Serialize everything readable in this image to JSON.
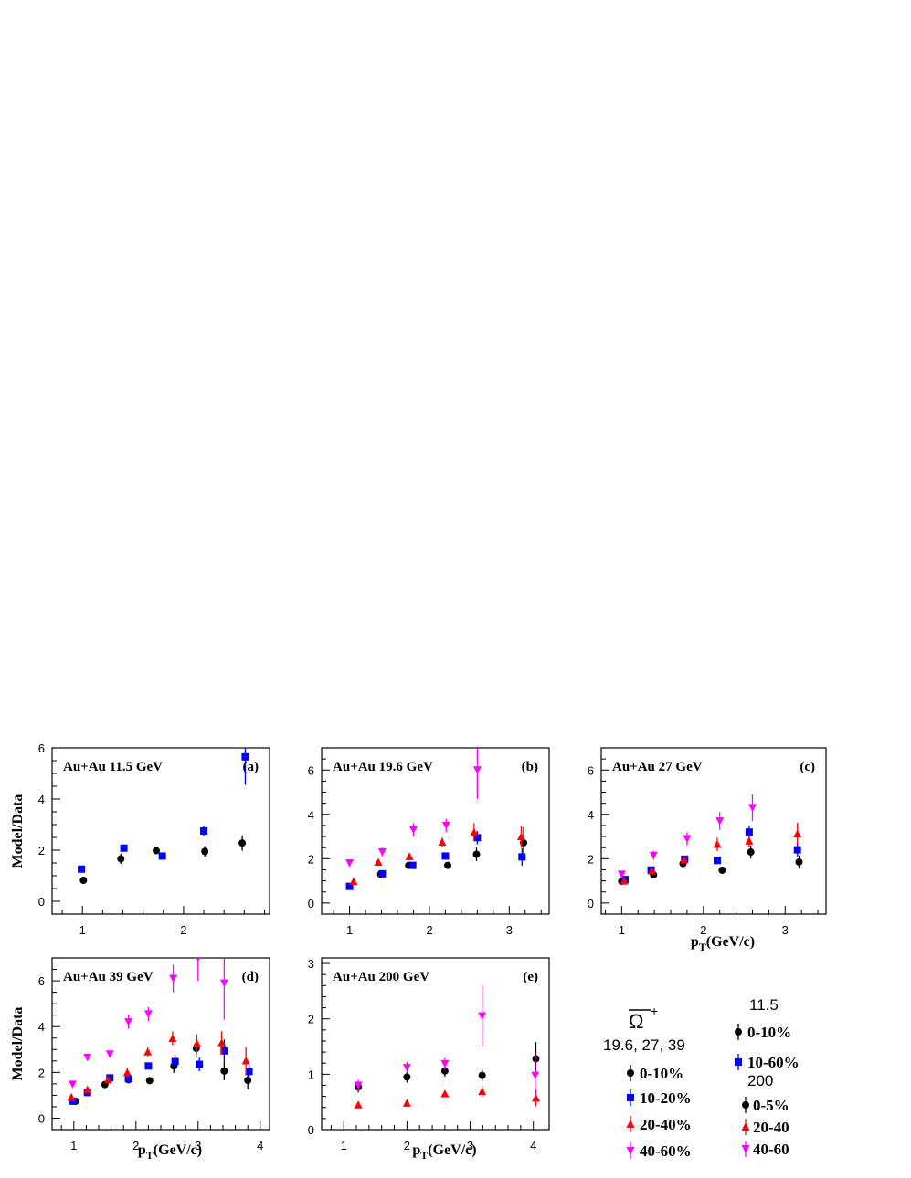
{
  "figure": {
    "legend_particle": "Ω",
    "legend_particle_sup": "+",
    "legend_group_left": "19.6, 27, 39",
    "legend_left": [
      "0-10%",
      "10-20%",
      "20-40%",
      "40-60%"
    ],
    "legend_group_right_1": "11.5",
    "legend_right_1": [
      "0-10%",
      "10-60%"
    ],
    "legend_group_right_2": "200",
    "legend_right_2": [
      "0-5%",
      "20-40",
      "40-60"
    ],
    "colors": {
      "black": "#000000",
      "blue": "#0000ff",
      "red": "#ff0000",
      "magenta": "#ff00ff"
    }
  },
  "chart_data": [
    {
      "type": "scatter",
      "title": "Au+Au 11.5 GeV",
      "panel_label": "(a)",
      "ylabel": "Model/Data",
      "xlabel": "",
      "xlim": [
        0.7,
        2.85
      ],
      "ylim": [
        -0.5,
        6
      ],
      "xticks": [
        1,
        2
      ],
      "yticks": [
        0,
        2,
        4,
        6
      ],
      "series": [
        {
          "marker": "circle",
          "color": "#000000",
          "x": [
            1.01,
            1.38,
            1.73,
            2.21,
            2.58
          ],
          "y": [
            0.82,
            1.66,
            1.98,
            1.95,
            2.28
          ],
          "err": [
            0.1,
            0.2,
            0.1,
            0.2,
            0.3
          ]
        },
        {
          "marker": "square",
          "color": "#0000ff",
          "x": [
            0.99,
            1.41,
            1.79,
            2.2,
            2.61
          ],
          "y": [
            1.26,
            2.08,
            1.77,
            2.75,
            5.65
          ],
          "err": [
            0.1,
            0.1,
            0.1,
            0.2,
            1.1
          ]
        }
      ]
    },
    {
      "type": "scatter",
      "title": "Au+Au 19.6 GeV",
      "panel_label": "(b)",
      "ylabel": "",
      "xlabel": "",
      "xlim": [
        0.65,
        3.5
      ],
      "ylim": [
        -0.5,
        7
      ],
      "xticks": [
        1,
        2,
        3
      ],
      "yticks": [
        0,
        2,
        4,
        6
      ],
      "series": [
        {
          "marker": "circle",
          "color": "#000000",
          "x": [
            1.39,
            1.74,
            2.23,
            2.59,
            3.18
          ],
          "y": [
            1.3,
            1.7,
            1.7,
            2.2,
            2.72
          ],
          "err": [
            0.1,
            0.1,
            0.1,
            0.3,
            0.7
          ]
        },
        {
          "marker": "square",
          "color": "#0000ff",
          "x": [
            1.0,
            1.41,
            1.79,
            2.2,
            2.6,
            3.16
          ],
          "y": [
            0.75,
            1.32,
            1.7,
            2.12,
            2.95,
            2.08
          ],
          "err": [
            0.1,
            0.1,
            0.1,
            0.15,
            0.3,
            0.4
          ]
        },
        {
          "marker": "triangle-up",
          "color": "#ff0000",
          "x": [
            1.05,
            1.36,
            1.75,
            2.16,
            2.56,
            3.15
          ],
          "y": [
            0.98,
            1.85,
            2.1,
            2.75,
            3.2,
            3.0
          ],
          "err": [
            0.1,
            0.1,
            0.1,
            0.2,
            0.4,
            0.5
          ]
        },
        {
          "marker": "triangle-down",
          "color": "#ff00ff",
          "x": [
            1.0,
            1.41,
            1.8,
            2.21,
            2.6
          ],
          "y": [
            1.8,
            2.3,
            3.3,
            3.5,
            6.0
          ],
          "err": [
            0.1,
            0.2,
            0.3,
            0.3,
            1.3
          ]
        }
      ]
    },
    {
      "type": "scatter",
      "title": "Au+Au 27 GeV",
      "panel_label": "(c)",
      "ylabel": "",
      "xlabel": "p_T(GeV/c)",
      "xlim": [
        0.75,
        3.5
      ],
      "ylim": [
        -0.5,
        7
      ],
      "xticks": [
        1,
        2,
        3
      ],
      "yticks": [
        0,
        2,
        4,
        6
      ],
      "series": [
        {
          "marker": "circle",
          "color": "#000000",
          "x": [
            1.0,
            1.39,
            1.75,
            2.23,
            2.58,
            3.17
          ],
          "y": [
            0.98,
            1.27,
            1.78,
            1.48,
            2.3,
            1.85
          ],
          "err": [
            0.1,
            0.1,
            0.1,
            0.1,
            0.3,
            0.3
          ]
        },
        {
          "marker": "square",
          "color": "#0000ff",
          "x": [
            1.04,
            1.36,
            1.77,
            2.17,
            2.56,
            3.15
          ],
          "y": [
            1.06,
            1.49,
            1.98,
            1.92,
            3.2,
            2.4
          ],
          "err": [
            0.1,
            0.1,
            0.1,
            0.1,
            0.3,
            0.3
          ]
        },
        {
          "marker": "triangle-up",
          "color": "#ff0000",
          "x": [
            1.03,
            1.37,
            1.76,
            2.17,
            2.56,
            3.15
          ],
          "y": [
            1.0,
            1.45,
            1.95,
            2.65,
            2.8,
            3.12
          ],
          "err": [
            0.1,
            0.1,
            0.1,
            0.3,
            0.3,
            0.5
          ]
        },
        {
          "marker": "triangle-down",
          "color": "#ff00ff",
          "x": [
            1.0,
            1.39,
            1.8,
            2.2,
            2.6
          ],
          "y": [
            1.3,
            2.15,
            2.9,
            3.7,
            4.3
          ],
          "err": [
            0.1,
            0.2,
            0.3,
            0.4,
            0.6
          ]
        }
      ]
    },
    {
      "type": "scatter",
      "title": "Au+Au 39 GeV",
      "panel_label": "(d)",
      "ylabel": "Model/Data",
      "xlabel": "p_T(GeV/c)",
      "xlim": [
        0.65,
        4.15
      ],
      "ylim": [
        -0.5,
        7
      ],
      "xticks": [
        1,
        2,
        3,
        4
      ],
      "yticks": [
        0,
        2,
        4,
        6
      ],
      "series": [
        {
          "marker": "circle",
          "color": "#000000",
          "x": [
            1.03,
            1.5,
            1.88,
            2.22,
            2.61,
            2.97,
            3.42,
            3.8
          ],
          "y": [
            0.74,
            1.47,
            1.68,
            1.64,
            2.28,
            3.05,
            2.06,
            1.65
          ],
          "err": [
            0.1,
            0.1,
            0.15,
            0.1,
            0.3,
            0.4,
            0.4,
            0.4
          ]
        },
        {
          "marker": "square",
          "color": "#0000ff",
          "x": [
            0.99,
            1.22,
            1.58,
            1.88,
            2.2,
            2.63,
            3.02,
            3.42,
            3.82
          ],
          "y": [
            0.74,
            1.12,
            1.76,
            1.72,
            2.28,
            2.47,
            2.35,
            2.94,
            2.04
          ],
          "err": [
            0.1,
            0.1,
            0.1,
            0.15,
            0.15,
            0.3,
            0.3,
            0.5,
            0.3
          ]
        },
        {
          "marker": "triangle-up",
          "color": "#ff0000",
          "x": [
            0.96,
            1.22,
            1.55,
            1.86,
            2.19,
            2.59,
            2.98,
            3.38,
            3.77
          ],
          "y": [
            0.92,
            1.25,
            1.68,
            2.0,
            2.9,
            3.49,
            3.27,
            3.3,
            2.51
          ],
          "err": [
            0.1,
            0.1,
            0.15,
            0.2,
            0.2,
            0.3,
            0.4,
            0.5,
            0.6
          ]
        },
        {
          "marker": "triangle-down",
          "color": "#ff00ff",
          "x": [
            0.98,
            1.22,
            1.58,
            1.88,
            2.2,
            2.6,
            3.0,
            3.42
          ],
          "y": [
            1.48,
            2.65,
            2.8,
            4.2,
            4.55,
            6.1,
            7.0,
            5.9
          ],
          "err": [
            0.1,
            0.1,
            0.15,
            0.3,
            0.3,
            0.6,
            1.0,
            1.6
          ]
        }
      ]
    },
    {
      "type": "scatter",
      "title": "Au+Au 200 GeV",
      "panel_label": "(e)",
      "ylabel": "",
      "xlabel": "p_T(GeV/c)",
      "xlim": [
        0.65,
        4.25
      ],
      "ylim": [
        0,
        3.1
      ],
      "xticks": [
        1,
        2,
        3,
        4
      ],
      "yticks": [
        0,
        1,
        2,
        3
      ],
      "series": [
        {
          "marker": "circle",
          "color": "#000000",
          "x": [
            1.23,
            2.0,
            2.6,
            3.19,
            4.04
          ],
          "y": [
            0.77,
            0.95,
            1.06,
            0.98,
            1.28
          ],
          "err": [
            0.1,
            0.1,
            0.1,
            0.1,
            0.3
          ]
        },
        {
          "marker": "triangle-up",
          "color": "#ff0000",
          "x": [
            1.23,
            2.0,
            2.6,
            3.19,
            4.04
          ],
          "y": [
            0.45,
            0.48,
            0.65,
            0.69,
            0.57
          ],
          "err": [
            0.05,
            0.05,
            0.05,
            0.1,
            0.15
          ]
        },
        {
          "marker": "triangle-down",
          "color": "#ff00ff",
          "x": [
            1.23,
            2.0,
            2.6,
            3.19,
            4.03
          ],
          "y": [
            0.8,
            1.12,
            1.19,
            2.05,
            0.98
          ],
          "err": [
            0.1,
            0.1,
            0.1,
            0.55,
            0.4
          ]
        }
      ]
    }
  ]
}
